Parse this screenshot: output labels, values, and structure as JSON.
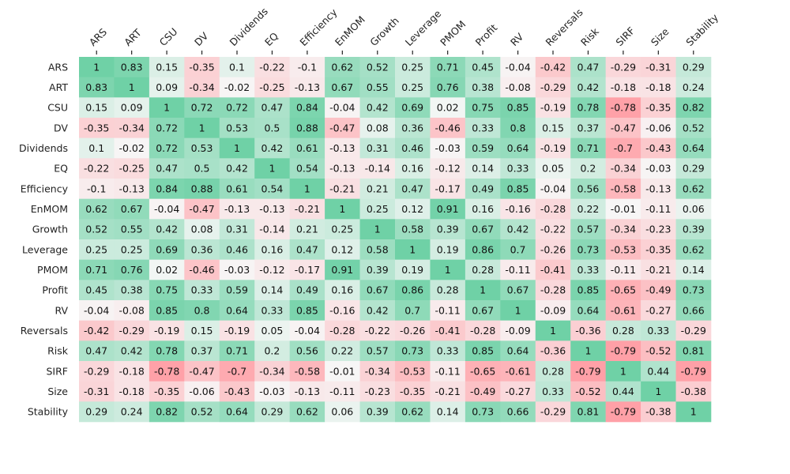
{
  "chart_data": {
    "type": "heatmap",
    "title": "",
    "xlabel": "",
    "ylabel": "",
    "x_labels": [
      "ARS",
      "ART",
      "CSU",
      "DV",
      "Dividends",
      "EQ",
      "Efficiency",
      "EnMOM",
      "Growth",
      "Leverage",
      "PMOM",
      "Profit",
      "RV",
      "Reversals",
      "Risk",
      "SIRF",
      "Size",
      "Stability"
    ],
    "y_labels": [
      "ARS",
      "ART",
      "CSU",
      "DV",
      "Dividends",
      "EQ",
      "Efficiency",
      "EnMOM",
      "Growth",
      "Leverage",
      "PMOM",
      "Profit",
      "RV",
      "Reversals",
      "Risk",
      "SIRF",
      "Size",
      "Stability"
    ],
    "color_positive": "#6fd1a6",
    "color_zero": "#f7f7f7",
    "color_negative": "#ff9fa6",
    "values": [
      [
        1.0,
        0.83,
        0.15,
        -0.35,
        0.1,
        -0.22,
        -0.1,
        0.62,
        0.52,
        0.25,
        0.71,
        0.45,
        -0.04,
        -0.42,
        0.47,
        -0.29,
        -0.31,
        0.29
      ],
      [
        0.83,
        1.0,
        0.09,
        -0.34,
        -0.02,
        -0.25,
        -0.13,
        0.67,
        0.55,
        0.25,
        0.76,
        0.38,
        -0.08,
        -0.29,
        0.42,
        -0.18,
        -0.18,
        0.24
      ],
      [
        0.15,
        0.09,
        1.0,
        0.72,
        0.72,
        0.47,
        0.84,
        -0.04,
        0.42,
        0.69,
        0.02,
        0.75,
        0.85,
        -0.19,
        0.78,
        -0.78,
        -0.35,
        0.82
      ],
      [
        -0.35,
        -0.34,
        0.72,
        1.0,
        0.53,
        0.5,
        0.88,
        -0.47,
        0.08,
        0.36,
        -0.46,
        0.33,
        0.8,
        0.15,
        0.37,
        -0.47,
        -0.06,
        0.52
      ],
      [
        0.1,
        -0.02,
        0.72,
        0.53,
        1.0,
        0.42,
        0.61,
        -0.13,
        0.31,
        0.46,
        -0.03,
        0.59,
        0.64,
        -0.19,
        0.71,
        -0.7,
        -0.43,
        0.64
      ],
      [
        -0.22,
        -0.25,
        0.47,
        0.5,
        0.42,
        1.0,
        0.54,
        -0.13,
        -0.14,
        0.16,
        -0.12,
        0.14,
        0.33,
        0.05,
        0.2,
        -0.34,
        -0.03,
        0.29
      ],
      [
        -0.1,
        -0.13,
        0.84,
        0.88,
        0.61,
        0.54,
        1.0,
        -0.21,
        0.21,
        0.47,
        -0.17,
        0.49,
        0.85,
        -0.04,
        0.56,
        -0.58,
        -0.13,
        0.62
      ],
      [
        0.62,
        0.67,
        -0.04,
        -0.47,
        -0.13,
        -0.13,
        -0.21,
        1.0,
        0.25,
        0.12,
        0.91,
        0.16,
        -0.16,
        -0.28,
        0.22,
        -0.01,
        -0.11,
        0.06
      ],
      [
        0.52,
        0.55,
        0.42,
        0.08,
        0.31,
        -0.14,
        0.21,
        0.25,
        1.0,
        0.58,
        0.39,
        0.67,
        0.42,
        -0.22,
        0.57,
        -0.34,
        -0.23,
        0.39
      ],
      [
        0.25,
        0.25,
        0.69,
        0.36,
        0.46,
        0.16,
        0.47,
        0.12,
        0.58,
        1.0,
        0.19,
        0.86,
        0.7,
        -0.26,
        0.73,
        -0.53,
        -0.35,
        0.62
      ],
      [
        0.71,
        0.76,
        0.02,
        -0.46,
        -0.03,
        -0.12,
        -0.17,
        0.91,
        0.39,
        0.19,
        1.0,
        0.28,
        -0.11,
        -0.41,
        0.33,
        -0.11,
        -0.21,
        0.14
      ],
      [
        0.45,
        0.38,
        0.75,
        0.33,
        0.59,
        0.14,
        0.49,
        0.16,
        0.67,
        0.86,
        0.28,
        1.0,
        0.67,
        -0.28,
        0.85,
        -0.65,
        -0.49,
        0.73
      ],
      [
        -0.04,
        -0.08,
        0.85,
        0.8,
        0.64,
        0.33,
        0.85,
        -0.16,
        0.42,
        0.7,
        -0.11,
        0.67,
        1.0,
        -0.09,
        0.64,
        -0.61,
        -0.27,
        0.66
      ],
      [
        -0.42,
        -0.29,
        -0.19,
        0.15,
        -0.19,
        0.05,
        -0.04,
        -0.28,
        -0.22,
        -0.26,
        -0.41,
        -0.28,
        -0.09,
        1.0,
        -0.36,
        0.28,
        0.33,
        -0.29
      ],
      [
        0.47,
        0.42,
        0.78,
        0.37,
        0.71,
        0.2,
        0.56,
        0.22,
        0.57,
        0.73,
        0.33,
        0.85,
        0.64,
        -0.36,
        1.0,
        -0.79,
        -0.52,
        0.81
      ],
      [
        -0.29,
        -0.18,
        -0.78,
        -0.47,
        -0.7,
        -0.34,
        -0.58,
        -0.01,
        -0.34,
        -0.53,
        -0.11,
        -0.65,
        -0.61,
        0.28,
        -0.79,
        1.0,
        0.44,
        -0.79
      ],
      [
        -0.31,
        -0.18,
        -0.35,
        -0.06,
        -0.43,
        -0.03,
        -0.13,
        -0.11,
        -0.23,
        -0.35,
        -0.21,
        -0.49,
        -0.27,
        0.33,
        -0.52,
        0.44,
        1.0,
        -0.38
      ],
      [
        0.29,
        0.24,
        0.82,
        0.52,
        0.64,
        0.29,
        0.62,
        0.06,
        0.39,
        0.62,
        0.14,
        0.73,
        0.66,
        -0.29,
        0.81,
        -0.79,
        -0.38,
        1.0
      ]
    ]
  }
}
